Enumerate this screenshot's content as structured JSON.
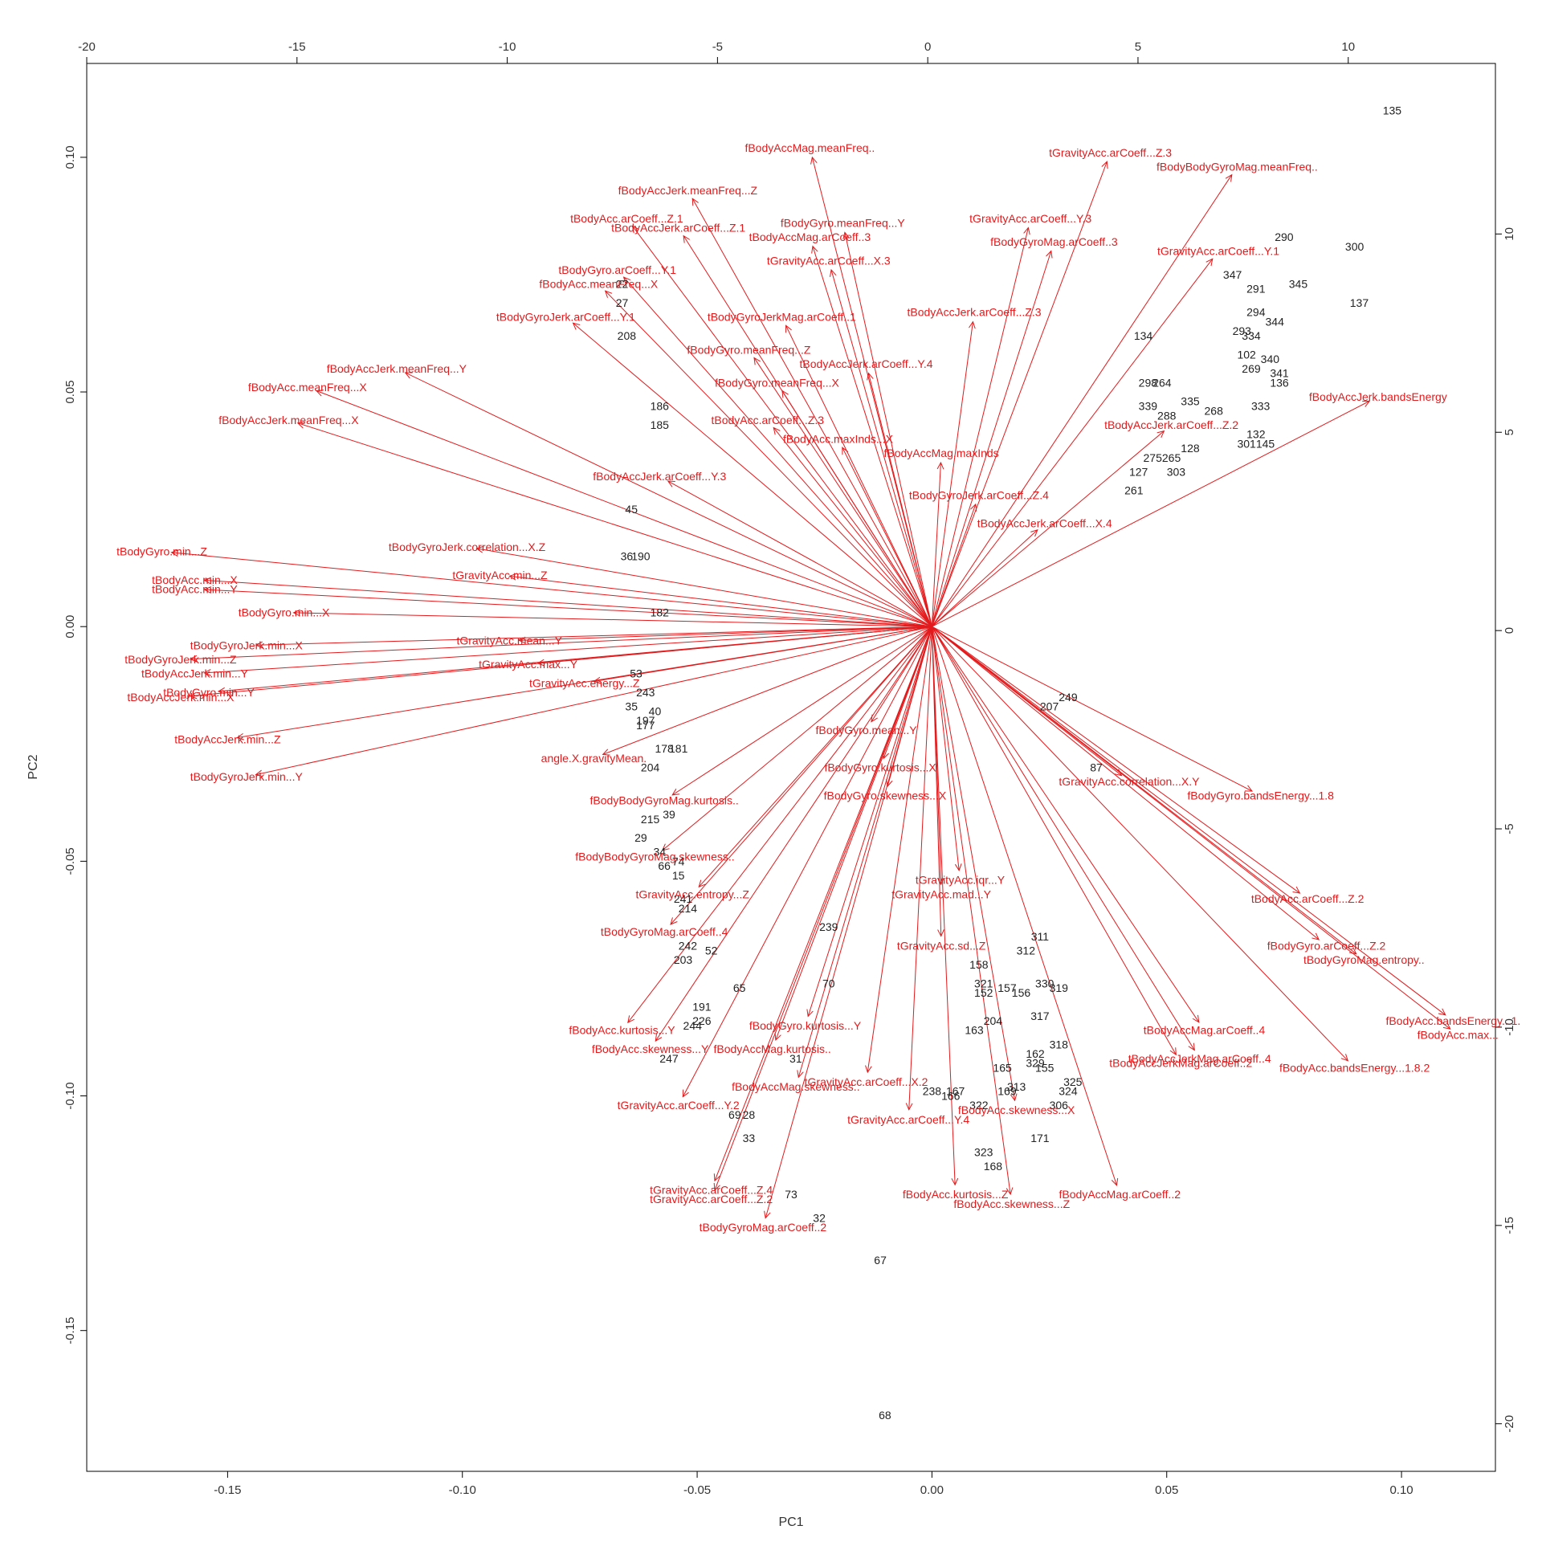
{
  "chart_data": {
    "type": "scatter",
    "subtype": "pca-biplot",
    "xlabel": "PC1",
    "ylabel": "PC2",
    "xlim": [
      -0.18,
      0.12
    ],
    "ylim": [
      -0.18,
      0.12
    ],
    "top_xlim": [
      -20,
      13.5
    ],
    "right_ylim": [
      -21.2,
      14.3
    ],
    "ticks": {
      "bottom": [
        -0.15,
        -0.1,
        -0.05,
        0.0,
        0.05,
        0.1
      ],
      "bottom_labels": [
        "-0.15",
        "-0.10",
        "-0.05",
        "0.00",
        "0.05",
        "0.10"
      ],
      "left": [
        -0.15,
        -0.1,
        -0.05,
        0.0,
        0.05,
        0.1
      ],
      "left_labels": [
        "-0.15",
        "-0.10",
        "-0.05",
        "0.00",
        "0.05",
        "0.10"
      ],
      "top": [
        -20,
        -15,
        -10,
        -5,
        0,
        5,
        10
      ],
      "top_labels": [
        "-20",
        "-15",
        "-10",
        "-5",
        "0",
        "5",
        "10"
      ],
      "right": [
        -20,
        -15,
        -10,
        -5,
        0,
        5,
        10
      ],
      "right_labels": [
        "-20",
        "-15",
        "-10",
        "-5",
        "0",
        "5",
        "10"
      ]
    },
    "grid": false,
    "colors": {
      "observations": "#222222",
      "variables": "#e31a1c",
      "axes": "#000000"
    },
    "observations": [
      {
        "label": "135",
        "x": 0.098,
        "y": 0.11
      },
      {
        "label": "290",
        "x": 0.075,
        "y": 0.083
      },
      {
        "label": "300",
        "x": 0.09,
        "y": 0.081
      },
      {
        "label": "347",
        "x": 0.064,
        "y": 0.075
      },
      {
        "label": "291",
        "x": 0.069,
        "y": 0.072
      },
      {
        "label": "345",
        "x": 0.078,
        "y": 0.073
      },
      {
        "label": "137",
        "x": 0.091,
        "y": 0.069
      },
      {
        "label": "294",
        "x": 0.069,
        "y": 0.067
      },
      {
        "label": "344",
        "x": 0.073,
        "y": 0.065
      },
      {
        "label": "134",
        "x": 0.045,
        "y": 0.062
      },
      {
        "label": "293",
        "x": 0.066,
        "y": 0.063
      },
      {
        "label": "334",
        "x": 0.068,
        "y": 0.062
      },
      {
        "label": "102",
        "x": 0.067,
        "y": 0.058
      },
      {
        "label": "269",
        "x": 0.068,
        "y": 0.055
      },
      {
        "label": "340",
        "x": 0.072,
        "y": 0.057
      },
      {
        "label": "341",
        "x": 0.074,
        "y": 0.054
      },
      {
        "label": "136",
        "x": 0.074,
        "y": 0.052
      },
      {
        "label": "298",
        "x": 0.046,
        "y": 0.052
      },
      {
        "label": "264",
        "x": 0.049,
        "y": 0.052
      },
      {
        "label": "335",
        "x": 0.055,
        "y": 0.048
      },
      {
        "label": "333",
        "x": 0.07,
        "y": 0.047
      },
      {
        "label": "339",
        "x": 0.046,
        "y": 0.047
      },
      {
        "label": "288",
        "x": 0.05,
        "y": 0.045
      },
      {
        "label": "268",
        "x": 0.06,
        "y": 0.046
      },
      {
        "label": "132",
        "x": 0.069,
        "y": 0.041
      },
      {
        "label": "301",
        "x": 0.067,
        "y": 0.039
      },
      {
        "label": "145",
        "x": 0.071,
        "y": 0.039
      },
      {
        "label": "128",
        "x": 0.055,
        "y": 0.038
      },
      {
        "label": "275",
        "x": 0.047,
        "y": 0.036
      },
      {
        "label": "265",
        "x": 0.051,
        "y": 0.036
      },
      {
        "label": "303",
        "x": 0.052,
        "y": 0.033
      },
      {
        "label": "127",
        "x": 0.044,
        "y": 0.033
      },
      {
        "label": "261",
        "x": 0.043,
        "y": 0.029
      },
      {
        "label": "22",
        "x": -0.066,
        "y": 0.073
      },
      {
        "label": "27",
        "x": -0.066,
        "y": 0.069
      },
      {
        "label": "208",
        "x": -0.065,
        "y": 0.062
      },
      {
        "label": "186",
        "x": -0.058,
        "y": 0.047
      },
      {
        "label": "185",
        "x": -0.058,
        "y": 0.043
      },
      {
        "label": "45",
        "x": -0.064,
        "y": 0.025
      },
      {
        "label": "36",
        "x": -0.065,
        "y": 0.015
      },
      {
        "label": "190",
        "x": -0.062,
        "y": 0.015
      },
      {
        "label": "182",
        "x": -0.058,
        "y": 0.003
      },
      {
        "label": "53",
        "x": -0.063,
        "y": -0.01
      },
      {
        "label": "243",
        "x": -0.061,
        "y": -0.014
      },
      {
        "label": "35",
        "x": -0.064,
        "y": -0.017
      },
      {
        "label": "40",
        "x": -0.059,
        "y": -0.018
      },
      {
        "label": "197",
        "x": -0.061,
        "y": -0.02
      },
      {
        "label": "177",
        "x": -0.061,
        "y": -0.021
      },
      {
        "label": "178",
        "x": -0.057,
        "y": -0.026
      },
      {
        "label": "181",
        "x": -0.054,
        "y": -0.026
      },
      {
        "label": "204",
        "x": -0.06,
        "y": -0.03
      },
      {
        "label": "39",
        "x": -0.056,
        "y": -0.04
      },
      {
        "label": "215",
        "x": -0.06,
        "y": -0.041
      },
      {
        "label": "29",
        "x": -0.062,
        "y": -0.045
      },
      {
        "label": "34",
        "x": -0.058,
        "y": -0.048
      },
      {
        "label": "74",
        "x": -0.054,
        "y": -0.05
      },
      {
        "label": "66",
        "x": -0.057,
        "y": -0.051
      },
      {
        "label": "15",
        "x": -0.054,
        "y": -0.053
      },
      {
        "label": "241",
        "x": -0.053,
        "y": -0.058
      },
      {
        "label": "214",
        "x": -0.052,
        "y": -0.06
      },
      {
        "label": "242",
        "x": -0.052,
        "y": -0.068
      },
      {
        "label": "52",
        "x": -0.047,
        "y": -0.069
      },
      {
        "label": "203",
        "x": -0.053,
        "y": -0.071
      },
      {
        "label": "65",
        "x": -0.041,
        "y": -0.077
      },
      {
        "label": "239",
        "x": -0.022,
        "y": -0.064
      },
      {
        "label": "70",
        "x": -0.022,
        "y": -0.076
      },
      {
        "label": "191",
        "x": -0.049,
        "y": -0.081
      },
      {
        "label": "226",
        "x": -0.049,
        "y": -0.084
      },
      {
        "label": "244",
        "x": -0.051,
        "y": -0.085
      },
      {
        "label": "247",
        "x": -0.056,
        "y": -0.092
      },
      {
        "label": "31",
        "x": -0.029,
        "y": -0.092
      },
      {
        "label": "69",
        "x": -0.042,
        "y": -0.104
      },
      {
        "label": "28",
        "x": -0.039,
        "y": -0.104
      },
      {
        "label": "33",
        "x": -0.039,
        "y": -0.109
      },
      {
        "label": "73",
        "x": -0.03,
        "y": -0.121
      },
      {
        "label": "32",
        "x": -0.024,
        "y": -0.126
      },
      {
        "label": "67",
        "x": -0.011,
        "y": -0.135
      },
      {
        "label": "68",
        "x": -0.01,
        "y": -0.168
      },
      {
        "label": "249",
        "x": 0.029,
        "y": -0.015
      },
      {
        "label": "207",
        "x": 0.025,
        "y": -0.017
      },
      {
        "label": "87",
        "x": 0.035,
        "y": -0.03
      },
      {
        "label": "158",
        "x": 0.01,
        "y": -0.072
      },
      {
        "label": "321",
        "x": 0.011,
        "y": -0.076
      },
      {
        "label": "330",
        "x": 0.024,
        "y": -0.076
      },
      {
        "label": "319",
        "x": 0.027,
        "y": -0.077
      },
      {
        "label": "157",
        "x": 0.016,
        "y": -0.077
      },
      {
        "label": "156",
        "x": 0.019,
        "y": -0.078
      },
      {
        "label": "152",
        "x": 0.011,
        "y": -0.078
      },
      {
        "label": "204",
        "x": 0.013,
        "y": -0.084
      },
      {
        "label": "163",
        "x": 0.009,
        "y": -0.086
      },
      {
        "label": "317",
        "x": 0.023,
        "y": -0.083
      },
      {
        "label": "162",
        "x": 0.022,
        "y": -0.091
      },
      {
        "label": "329",
        "x": 0.022,
        "y": -0.093
      },
      {
        "label": "155",
        "x": 0.024,
        "y": -0.094
      },
      {
        "label": "165",
        "x": 0.015,
        "y": -0.094
      },
      {
        "label": "313",
        "x": 0.018,
        "y": -0.098
      },
      {
        "label": "325",
        "x": 0.03,
        "y": -0.097
      },
      {
        "label": "324",
        "x": 0.029,
        "y": -0.099
      },
      {
        "label": "169",
        "x": 0.016,
        "y": -0.099
      },
      {
        "label": "306",
        "x": 0.027,
        "y": -0.102
      },
      {
        "label": "322",
        "x": 0.01,
        "y": -0.102
      },
      {
        "label": "238",
        "x": 0.0,
        "y": -0.099
      },
      {
        "label": "167",
        "x": 0.005,
        "y": -0.099
      },
      {
        "label": "166",
        "x": 0.004,
        "y": -0.1
      },
      {
        "label": "171",
        "x": 0.023,
        "y": -0.109
      },
      {
        "label": "323",
        "x": 0.011,
        "y": -0.112
      },
      {
        "label": "168",
        "x": 0.013,
        "y": -0.115
      },
      {
        "label": "318",
        "x": 0.027,
        "y": -0.089
      },
      {
        "label": "312",
        "x": 0.02,
        "y": -0.069
      },
      {
        "label": "311",
        "x": 0.023,
        "y": -0.066
      }
    ],
    "variables": [
      {
        "label": "fBodyAccMag.meanFreq..",
        "x": -0.026,
        "y": 0.102
      },
      {
        "label": "tGravityAcc.arCoeff...Z.3",
        "x": 0.038,
        "y": 0.101
      },
      {
        "label": "fBodyAccJerk.meanFreq...Z",
        "x": -0.052,
        "y": 0.093
      },
      {
        "label": "fBodyBodyGyroMag.meanFreq..",
        "x": 0.065,
        "y": 0.098
      },
      {
        "label": "tBodyAcc.arCoeff...Z.1",
        "x": -0.065,
        "y": 0.087
      },
      {
        "label": "tBodyAccJerk.arCoeff...Z.1",
        "x": -0.054,
        "y": 0.085
      },
      {
        "label": "fBodyGyro.meanFreq...Y",
        "x": -0.019,
        "y": 0.086
      },
      {
        "label": "tBodyAccMag.arCoeff..3",
        "x": -0.026,
        "y": 0.083
      },
      {
        "label": "tGravityAcc.arCoeff...Y.3",
        "x": 0.021,
        "y": 0.087
      },
      {
        "label": "tGravityAcc.arCoeff...X.3",
        "x": -0.022,
        "y": 0.078
      },
      {
        "label": "tGravityAcc.arCoeff...Y.1",
        "x": 0.061,
        "y": 0.08
      },
      {
        "label": "fBodyGyroMag.arCoeff..3",
        "x": 0.026,
        "y": 0.082
      },
      {
        "label": "tBodyGyro.arCoeff...Y.1",
        "x": -0.067,
        "y": 0.076
      },
      {
        "label": "fBodyAcc.meanFreq...X",
        "x": -0.071,
        "y": 0.073
      },
      {
        "label": "tBodyGyroJerk.arCoeff...Y.1",
        "x": -0.078,
        "y": 0.066
      },
      {
        "label": "tBodyGyroJerkMag.arCoeff..1",
        "x": -0.032,
        "y": 0.066
      },
      {
        "label": "tBodyAccJerk.arCoeff...Z.3",
        "x": 0.009,
        "y": 0.067
      },
      {
        "label": "fBodyGyro.meanFreq...Z",
        "x": -0.039,
        "y": 0.059
      },
      {
        "label": "tBodyAccJerk.arCoeff...Y.4",
        "x": -0.014,
        "y": 0.056
      },
      {
        "label": "fBodyAccJerk.meanFreq...Y",
        "x": -0.114,
        "y": 0.055
      },
      {
        "label": "fBodyAcc.meanFreq...X",
        "x": -0.133,
        "y": 0.051
      },
      {
        "label": "fBodyGyro.meanFreq...X",
        "x": -0.033,
        "y": 0.052
      },
      {
        "label": "tBodyAcc.arCoeff...Z.3",
        "x": -0.035,
        "y": 0.044
      },
      {
        "label": "fBodyAccJerk.meanFreq...X",
        "x": -0.137,
        "y": 0.044
      },
      {
        "label": "fBodyAcc.maxInds...X",
        "x": -0.02,
        "y": 0.04
      },
      {
        "label": "fBodyAccMag.maxInds",
        "x": 0.002,
        "y": 0.037
      },
      {
        "label": "fBodyAccJerk.arCoeff...Y.3",
        "x": -0.058,
        "y": 0.032
      },
      {
        "label": "tBodyGyro.min...Z",
        "x": -0.164,
        "y": 0.016
      },
      {
        "label": "tBodyAcc.min...X",
        "x": -0.157,
        "y": 0.01
      },
      {
        "label": "tBodyAcc.min...Y",
        "x": -0.157,
        "y": 0.008
      },
      {
        "label": "tBodyGyro.min...X",
        "x": -0.138,
        "y": 0.003
      },
      {
        "label": "tBodyGyroJerk.min...X",
        "x": -0.146,
        "y": -0.004
      },
      {
        "label": "tBodyGyroJerk.min...Z",
        "x": -0.16,
        "y": -0.007
      },
      {
        "label": "tBodyAccJerk.min...Y",
        "x": -0.157,
        "y": -0.01
      },
      {
        "label": "tBodyGyro.min...Y",
        "x": -0.154,
        "y": -0.014
      },
      {
        "label": "tBodyAccJerk.min...X",
        "x": -0.16,
        "y": -0.015
      },
      {
        "label": "tBodyAccJerk.min...Z",
        "x": -0.15,
        "y": -0.024
      },
      {
        "label": "tBodyGyroJerk.min...Y",
        "x": -0.146,
        "y": -0.032
      },
      {
        "label": "tBodyGyroJerk.correlation...X.Z",
        "x": -0.099,
        "y": 0.017
      },
      {
        "label": "tGravityAcc.min...Z",
        "x": -0.092,
        "y": 0.011
      },
      {
        "label": "tGravityAcc.mean...Y",
        "x": -0.09,
        "y": -0.003
      },
      {
        "label": "tGravityAcc.max...Y",
        "x": -0.086,
        "y": -0.008
      },
      {
        "label": "tGravityAcc.energy...Z",
        "x": -0.074,
        "y": -0.012
      },
      {
        "label": "angle.X.gravityMean.",
        "x": -0.072,
        "y": -0.028
      },
      {
        "label": "fBodyBodyGyroMag.kurtosis..",
        "x": -0.057,
        "y": -0.037
      },
      {
        "label": "fBodyBodyGyroMag.skewness..",
        "x": -0.059,
        "y": -0.049
      },
      {
        "label": "tGravityAcc.entropy...Z",
        "x": -0.051,
        "y": -0.057
      },
      {
        "label": "tBodyGyroMag.arCoeff..4",
        "x": -0.057,
        "y": -0.065
      },
      {
        "label": "fBodyAcc.kurtosis...Y",
        "x": -0.066,
        "y": -0.086
      },
      {
        "label": "fBodyAcc.skewness...Y",
        "x": -0.06,
        "y": -0.09
      },
      {
        "label": "fBodyAccMag.kurtosis..",
        "x": -0.034,
        "y": -0.09
      },
      {
        "label": "fBodyAccMag.skewness..",
        "x": -0.029,
        "y": -0.098
      },
      {
        "label": "tGravityAcc.arCoeff...Y.2",
        "x": -0.054,
        "y": -0.102
      },
      {
        "label": "tGravityAcc.arCoeff...Z.4",
        "x": -0.047,
        "y": -0.12
      },
      {
        "label": "tGravityAcc.arCoeff...Z.2",
        "x": -0.047,
        "y": -0.122
      },
      {
        "label": "tBodyGyroMag.arCoeff..2",
        "x": -0.036,
        "y": -0.128
      },
      {
        "label": "fBodyGyro.kurtosis...Y",
        "x": -0.027,
        "y": -0.085
      },
      {
        "label": "fBodyGyro.mean...Y",
        "x": -0.014,
        "y": -0.022
      },
      {
        "label": "fBodyGyro.kurtosis...X",
        "x": -0.011,
        "y": -0.03
      },
      {
        "label": "fBodyGyro.skewness...X",
        "x": -0.01,
        "y": -0.036
      },
      {
        "label": "tGravityAcc.iqr...Y",
        "x": 0.006,
        "y": -0.054
      },
      {
        "label": "tGravityAcc.mad...Y",
        "x": 0.002,
        "y": -0.057
      },
      {
        "label": "tGravityAcc.sd...Z",
        "x": 0.002,
        "y": -0.068
      },
      {
        "label": "tGravityAcc.arCoeff...X.2",
        "x": -0.014,
        "y": -0.097
      },
      {
        "label": "tGravityAcc.arCoeff...Y.4",
        "x": -0.005,
        "y": -0.105
      },
      {
        "label": "fBodyAcc.kurtosis...Z",
        "x": 0.005,
        "y": -0.121
      },
      {
        "label": "fBodyAcc.skewness...Z",
        "x": 0.017,
        "y": -0.123
      },
      {
        "label": "fBodyAccMag.arCoeff..2",
        "x": 0.04,
        "y": -0.121
      },
      {
        "label": "fBodyAcc.skewness...X",
        "x": 0.018,
        "y": -0.103
      },
      {
        "label": "tBodyAccMag.arCoeff..4",
        "x": 0.058,
        "y": -0.086
      },
      {
        "label": "tBodyAccJerkMag.arCoeff..2",
        "x": 0.053,
        "y": -0.093
      },
      {
        "label": "tBodyAccJerkMag.arCoeff..4",
        "x": 0.057,
        "y": -0.092
      },
      {
        "label": "tGravityAcc.correlation...X.Y",
        "x": 0.042,
        "y": -0.033
      },
      {
        "label": "fBodyGyro.bandsEnergy...1.8",
        "x": 0.07,
        "y": -0.036
      },
      {
        "label": "tBodyAcc.arCoeff...Z.2",
        "x": 0.08,
        "y": -0.058
      },
      {
        "label": "fBodyGyro.arCoeff...Z.2",
        "x": 0.084,
        "y": -0.068
      },
      {
        "label": "tBodyGyroMag.entropy..",
        "x": 0.092,
        "y": -0.071
      },
      {
        "label": "fBodyAcc.bandsEnergy...1.8.2",
        "x": 0.09,
        "y": -0.094
      },
      {
        "label": "fBodyAcc.bandsEnergy...1.",
        "x": 0.111,
        "y": -0.084
      },
      {
        "label": "fBodyAcc.max...",
        "x": 0.112,
        "y": -0.087
      },
      {
        "label": "tBodyAccJerk.arCoeff...Z.2",
        "x": 0.051,
        "y": 0.043
      },
      {
        "label": "tBodyGyroJerk.arCoeff...Z.4",
        "x": 0.01,
        "y": 0.028
      },
      {
        "label": "tBodyAccJerk.arCoeff...X.4",
        "x": 0.024,
        "y": 0.022
      },
      {
        "label": "fBodyAccJerk.bandsEnergy",
        "x": 0.095,
        "y": 0.049
      }
    ]
  }
}
